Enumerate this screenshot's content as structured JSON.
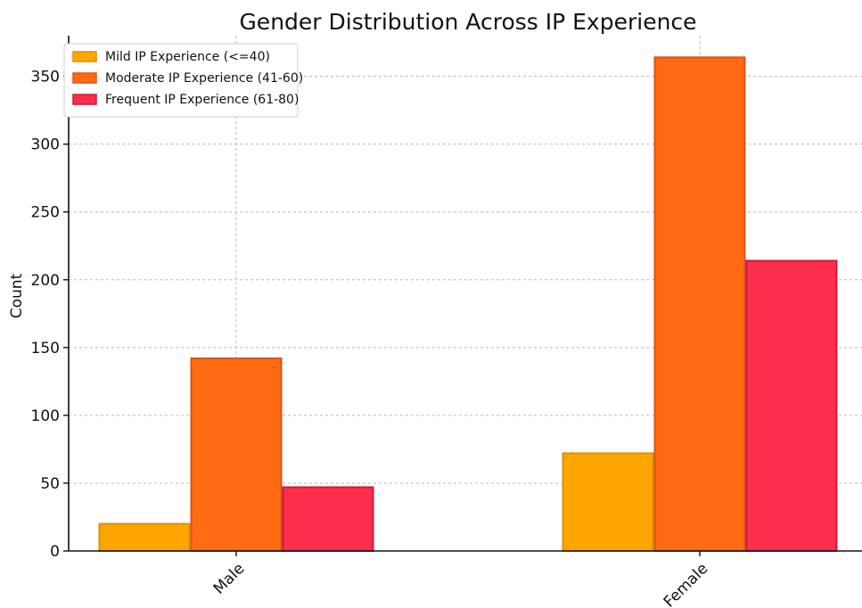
{
  "chart_data": {
    "type": "bar",
    "title": "Gender Distribution Across IP Experience",
    "xlabel": "",
    "ylabel": "Count",
    "categories": [
      "Male",
      "Female"
    ],
    "series": [
      {
        "name": "Mild IP Experience (<=40)",
        "values": [
          20,
          72
        ],
        "color": "#FFA500",
        "edge": "#E08F00"
      },
      {
        "name": "Moderate IP Experience (41-60)",
        "values": [
          142,
          364
        ],
        "color": "#FF6A13",
        "edge": "#D9541B"
      },
      {
        "name": "Frequent IP Experience (61-80)",
        "values": [
          47,
          214
        ],
        "color": "#FF2E4D",
        "edge": "#C81E3A"
      }
    ],
    "ylim": [
      0,
      380
    ],
    "yticks": [
      0,
      50,
      100,
      150,
      200,
      250,
      300,
      350
    ],
    "grid": true,
    "legend_position": "top-left"
  }
}
